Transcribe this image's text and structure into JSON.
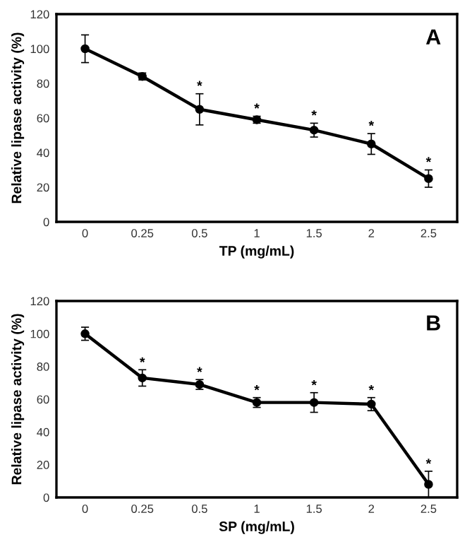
{
  "chart_data": [
    {
      "type": "line",
      "xlabel": "TP (mg/mL)",
      "ylabel": "Relative lipase activity (%)",
      "categories": [
        "0",
        "0.25",
        "0.5",
        "1",
        "1.5",
        "2",
        "2.5"
      ],
      "series": [
        {
          "color": "#000000",
          "values": [
            100,
            84,
            65,
            59,
            53,
            45,
            25
          ],
          "errors": [
            8,
            2,
            9,
            2,
            4,
            6,
            5
          ]
        }
      ],
      "ylim": [
        0,
        120
      ],
      "yticks": [
        0,
        20,
        40,
        60,
        80,
        100,
        120
      ],
      "marker": "circle",
      "line_style": "solid",
      "grid": false,
      "legend": false,
      "annotations": [
        "A",
        {
          "text": "*",
          "x": "0.5",
          "y": 78
        },
        {
          "text": "*",
          "x": "1",
          "y": 65
        },
        {
          "text": "*",
          "x": "1.5",
          "y": 61
        },
        {
          "text": "*",
          "x": "2",
          "y": 55
        },
        {
          "text": "*",
          "x": "2.5",
          "y": 34
        }
      ]
    },
    {
      "type": "line",
      "xlabel": "SP (mg/mL)",
      "ylabel": "Relative lipase activity (%)",
      "categories": [
        "0",
        "0.25",
        "0.5",
        "1",
        "1.5",
        "2",
        "2.5"
      ],
      "series": [
        {
          "color": "#000000",
          "values": [
            100,
            73,
            69,
            58,
            58,
            57,
            8
          ],
          "errors": [
            4,
            5,
            3,
            3,
            6,
            4,
            8
          ]
        }
      ],
      "ylim": [
        0,
        120
      ],
      "yticks": [
        0,
        20,
        40,
        60,
        80,
        100,
        120
      ],
      "marker": "circle",
      "line_style": "solid",
      "grid": false,
      "legend": false,
      "annotations": [
        "B",
        {
          "text": "*",
          "x": "0.25",
          "y": 82
        },
        {
          "text": "*",
          "x": "0.5",
          "y": 76
        },
        {
          "text": "*",
          "x": "1",
          "y": 65
        },
        {
          "text": "*",
          "x": "1.5",
          "y": 68
        },
        {
          "text": "*",
          "x": "2",
          "y": 65
        },
        {
          "text": "*",
          "x": "2.5",
          "y": 20
        }
      ]
    }
  ]
}
